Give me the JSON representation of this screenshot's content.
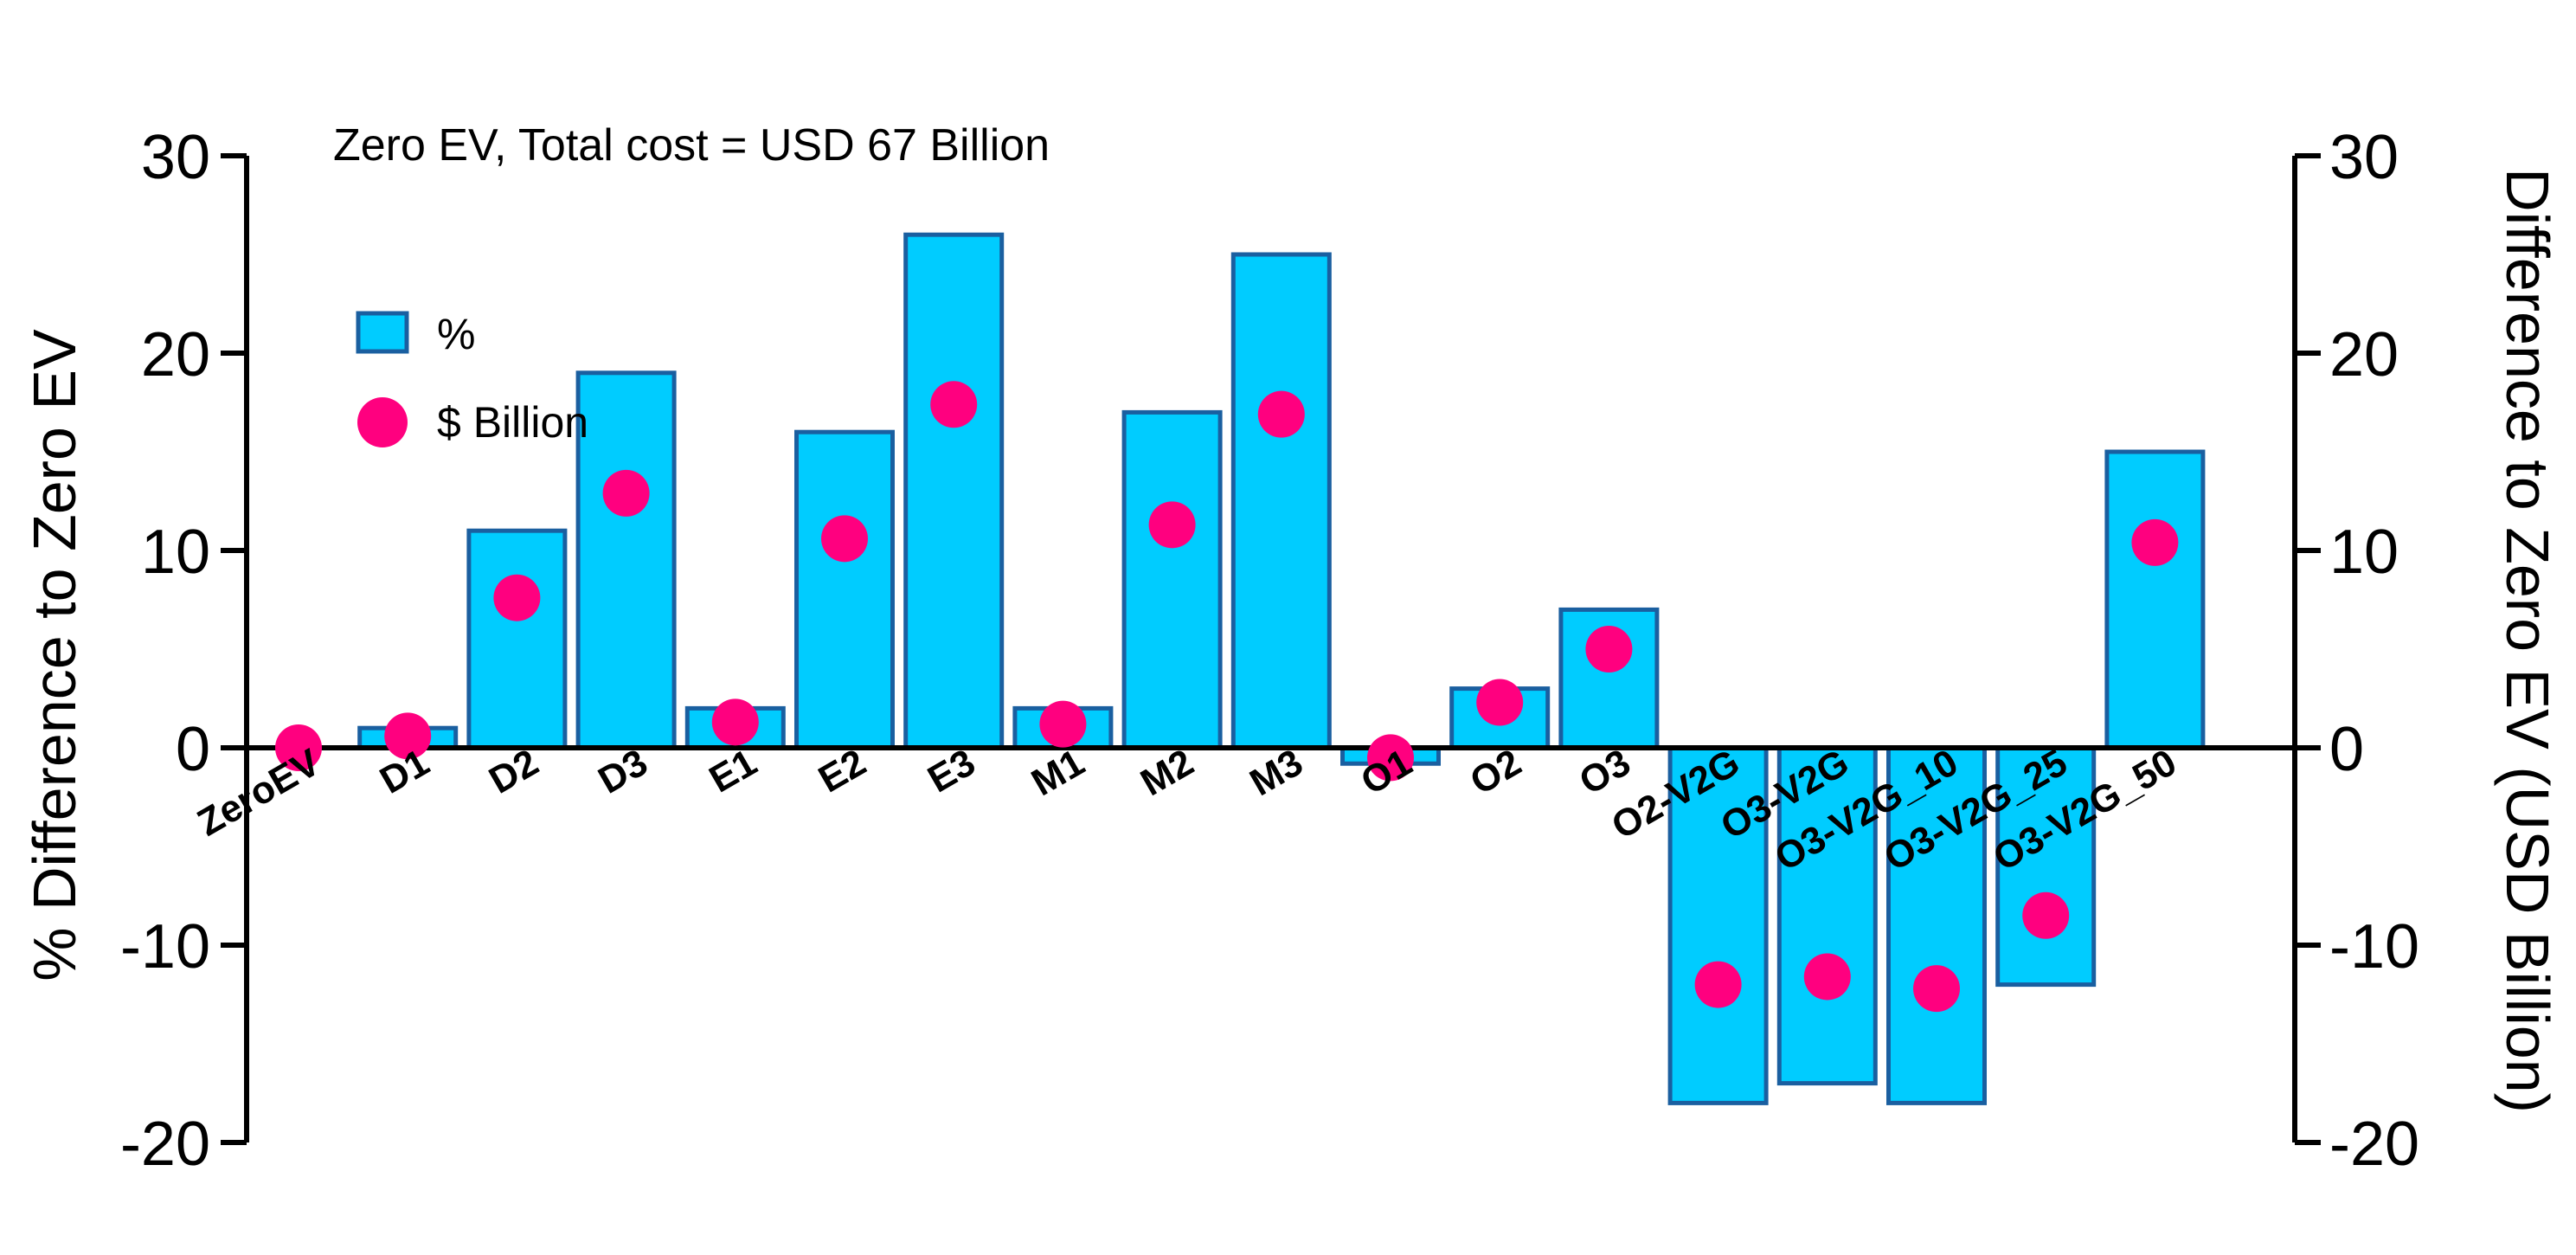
{
  "chart_data": {
    "type": "bar",
    "title": "",
    "annotation": "Zero EV, Total cost = USD 67 Billion",
    "ylabel": "% Difference to Zero EV",
    "y2label": "Difference to Zero EV (USD Billion)",
    "ylim": [
      -20,
      30
    ],
    "y2lim": [
      -20,
      30
    ],
    "yticks": [
      30,
      20,
      10,
      0,
      -10,
      -20
    ],
    "y2ticks": [
      30,
      20,
      10,
      0,
      -10,
      -20
    ],
    "legend_placement": "top-left",
    "categories": [
      "ZeroEV",
      "D1",
      "D2",
      "D3",
      "E1",
      "E2",
      "E3",
      "M1",
      "M2",
      "M3",
      "O1",
      "O2",
      "O3",
      "O2-V2G",
      "O3-V2G",
      "O3-V2G_10",
      "O3-V2G_25",
      "O3-V2G_50"
    ],
    "series": [
      {
        "name": "%",
        "kind": "bar",
        "axis": "left",
        "color": "#00CCFF",
        "edge_color": "#1A5FA0",
        "values": [
          0,
          1,
          11,
          19,
          2,
          16,
          26,
          2,
          17,
          25,
          -0.8,
          3,
          7,
          -18,
          -17,
          -18,
          -12,
          15
        ]
      },
      {
        "name": "$ Billion",
        "kind": "scatter",
        "axis": "right",
        "color": "#FF007F",
        "values": [
          0,
          0.6,
          7.6,
          12.9,
          1.3,
          10.6,
          17.4,
          1.2,
          11.3,
          16.9,
          -0.5,
          2.3,
          5.0,
          -12.0,
          -11.6,
          -12.2,
          -8.5,
          10.4
        ]
      }
    ]
  }
}
